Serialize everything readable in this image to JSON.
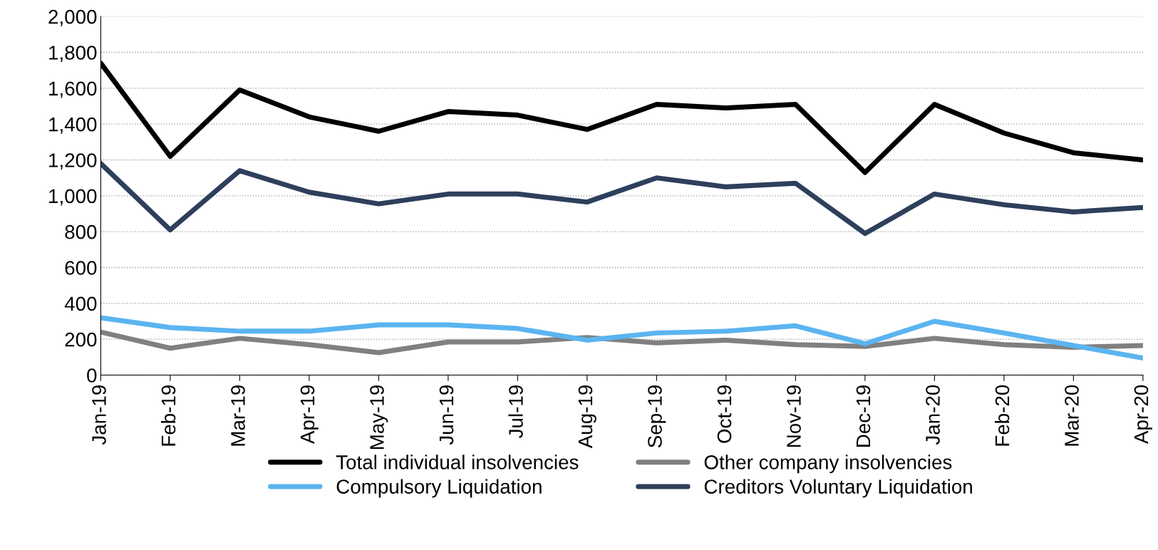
{
  "chart_data": {
    "type": "line",
    "categories": [
      "Jan-19",
      "Feb-19",
      "Mar-19",
      "Apr-19",
      "May-19",
      "Jun-19",
      "Jul-19",
      "Aug-19",
      "Sep-19",
      "Oct-19",
      "Nov-19",
      "Dec-19",
      "Jan-20",
      "Feb-20",
      "Mar-20",
      "Apr-20"
    ],
    "series": [
      {
        "name": "Total individual insolvencies",
        "color": "#000000",
        "values": [
          1740,
          1220,
          1590,
          1440,
          1360,
          1470,
          1450,
          1370,
          1510,
          1490,
          1510,
          1130,
          1510,
          1350,
          1240,
          1200
        ]
      },
      {
        "name": "Other company insolvencies",
        "color": "#808080",
        "values": [
          240,
          150,
          205,
          170,
          125,
          185,
          185,
          210,
          180,
          195,
          170,
          160,
          205,
          170,
          155,
          165
        ]
      },
      {
        "name": "Compulsory Liquidation",
        "color": "#5bb4f0",
        "values": [
          320,
          265,
          245,
          245,
          280,
          280,
          260,
          195,
          235,
          245,
          275,
          175,
          300,
          235,
          165,
          95
        ]
      },
      {
        "name": "Creditors Voluntary Liquidation",
        "color": "#2e3f5c",
        "values": [
          1180,
          810,
          1140,
          1020,
          955,
          1010,
          1010,
          965,
          1100,
          1050,
          1070,
          790,
          1010,
          950,
          910,
          935
        ]
      }
    ],
    "ylim": [
      0,
      2000
    ],
    "yticks": [
      {
        "value": 0,
        "label": "0"
      },
      {
        "value": 200,
        "label": "200"
      },
      {
        "value": 400,
        "label": "400"
      },
      {
        "value": 600,
        "label": "600"
      },
      {
        "value": 800,
        "label": "800"
      },
      {
        "value": 1000,
        "label": "1,000"
      },
      {
        "value": 1200,
        "label": "1,200"
      },
      {
        "value": 1400,
        "label": "1,400"
      },
      {
        "value": 1600,
        "label": "1,600"
      },
      {
        "value": 1800,
        "label": "1,800"
      },
      {
        "value": 2000,
        "label": "2,000"
      }
    ],
    "grid": "y",
    "legend": "bottom",
    "marker": "none",
    "line_style": "solid"
  }
}
